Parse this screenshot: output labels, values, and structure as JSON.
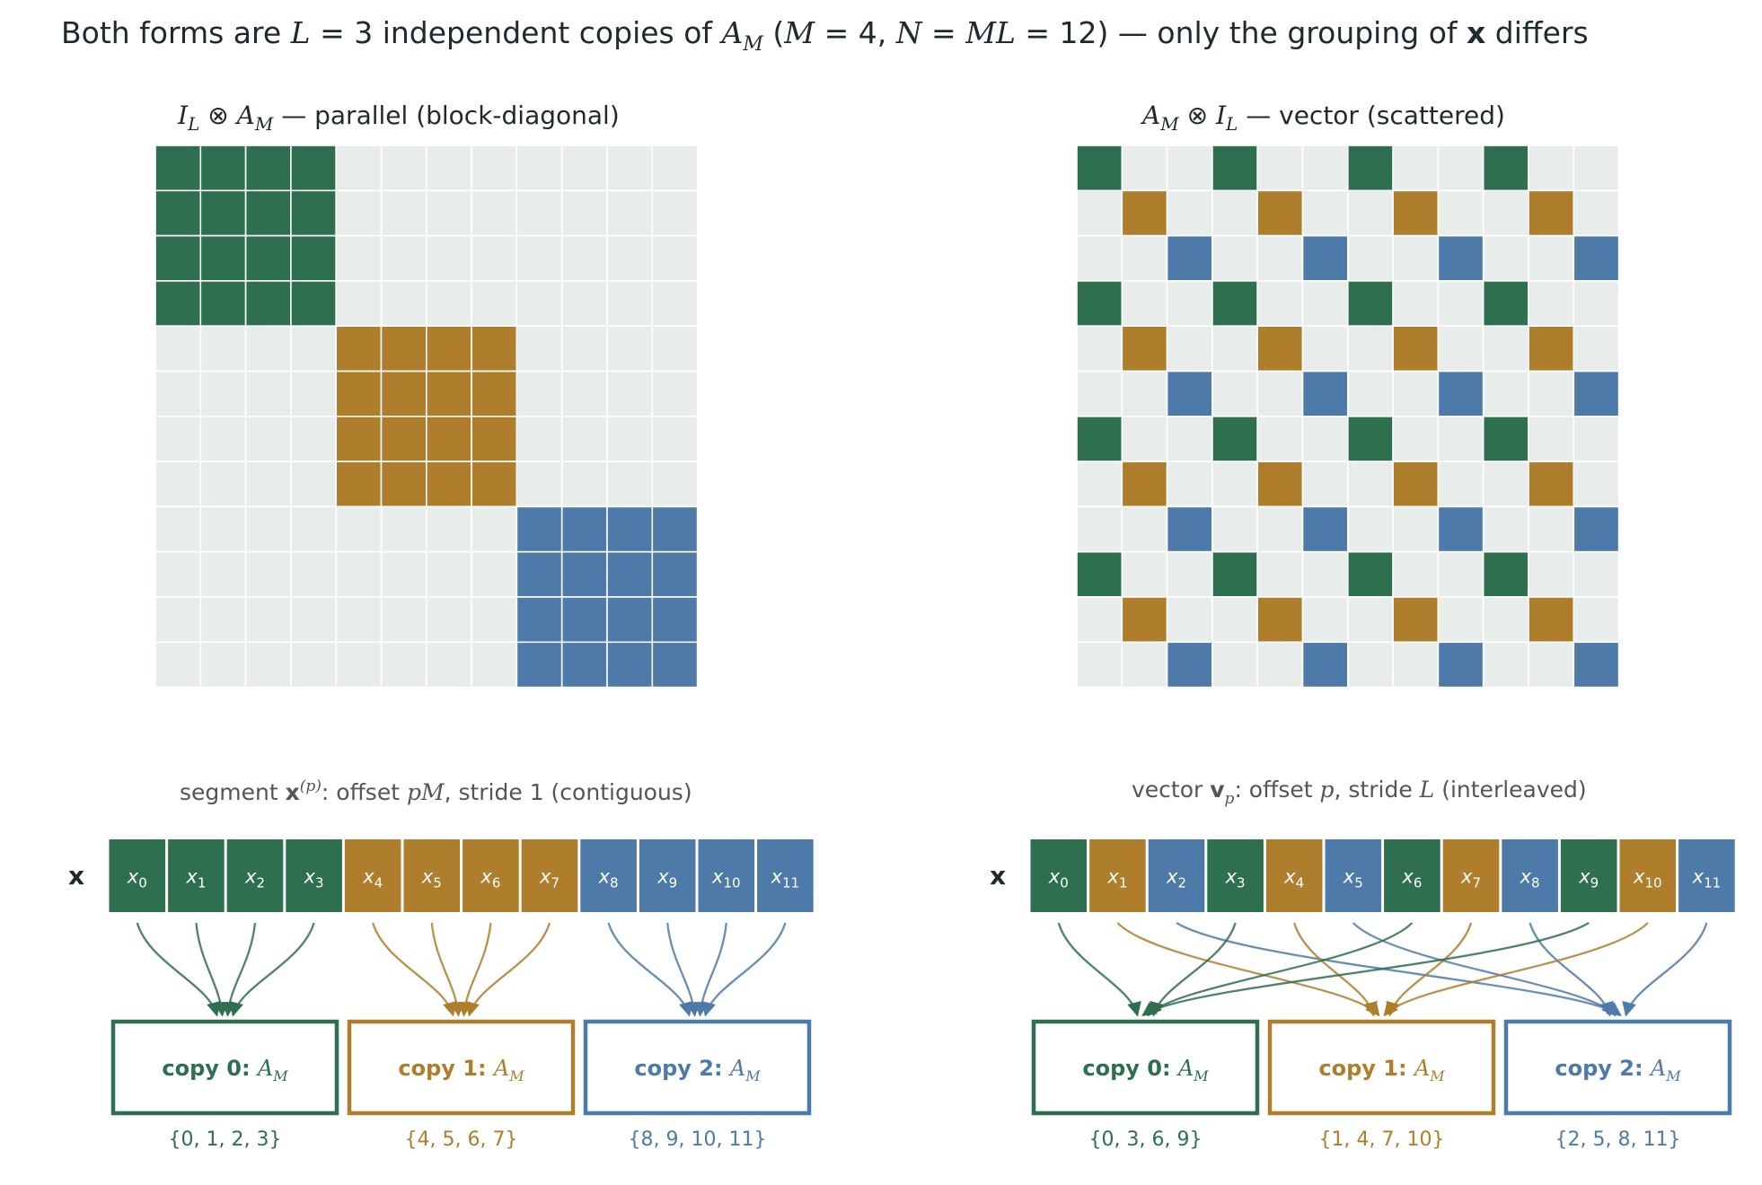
{
  "title": "Both forms are L = 3 independent copies of A_M (M = 4, N = ML = 12) — only the grouping of x differs",
  "colors": {
    "copy": [
      "#2e6f4f",
      "#ae7e2c",
      "#4d7aa8"
    ],
    "empty": "#e8eceb",
    "grid_line": "#ffffff",
    "title_text": "#1f2a2e",
    "subtitle_text": "#555555"
  },
  "params": {
    "L": 3,
    "M": 4,
    "N": 12
  },
  "left_panel": {
    "matrix_title": "I_L ⊗ A_M  —  parallel  (block-diagonal)",
    "layout": "parallel",
    "subtitle": "segment x^(p):  offset pM, stride 1   (contiguous)",
    "vector_label": "x",
    "copies": [
      {
        "label": "copy 0:",
        "op": "A_M",
        "indices": "{0, 1, 2, 3}"
      },
      {
        "label": "copy 1:",
        "op": "A_M",
        "indices": "{4, 5, 6, 7}"
      },
      {
        "label": "copy 2:",
        "op": "A_M",
        "indices": "{8, 9, 10, 11}"
      }
    ]
  },
  "right_panel": {
    "matrix_title": "A_M ⊗ I_L  —  vector  (scattered)",
    "layout": "vector",
    "subtitle": "vector v_p:  offset p, stride L   (interleaved)",
    "vector_label": "x",
    "copies": [
      {
        "label": "copy 0:",
        "op": "A_M",
        "indices": "{0, 3, 6, 9}"
      },
      {
        "label": "copy 1:",
        "op": "A_M",
        "indices": "{1, 4, 7, 10}"
      },
      {
        "label": "copy 2:",
        "op": "A_M",
        "indices": "{2, 5, 8, 11}"
      }
    ]
  },
  "vector_cells": [
    "x0",
    "x1",
    "x2",
    "x3",
    "x4",
    "x5",
    "x6",
    "x7",
    "x8",
    "x9",
    "x10",
    "x11"
  ]
}
